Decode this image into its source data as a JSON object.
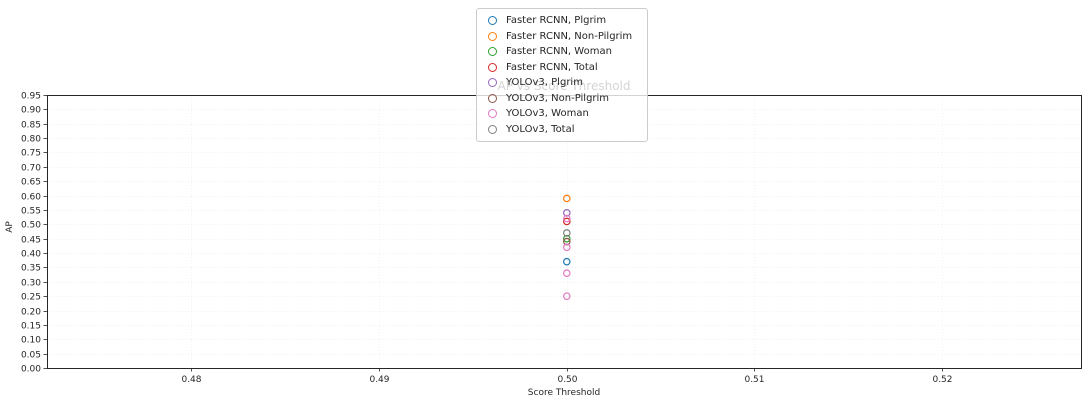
{
  "chart_data": {
    "type": "scatter",
    "title": "AP vs Score Threshold",
    "xlabel": "Score Threshold",
    "ylabel": "AP",
    "xlim": [
      0.4723,
      0.5274
    ],
    "ylim": [
      0.0,
      0.95
    ],
    "x_ticks": [
      0.48,
      0.49,
      0.5,
      0.51,
      0.52
    ],
    "y_ticks": [
      0.0,
      0.05,
      0.1,
      0.15,
      0.2,
      0.25,
      0.3,
      0.35,
      0.4,
      0.45,
      0.5,
      0.55,
      0.6,
      0.65,
      0.7,
      0.75,
      0.8,
      0.85,
      0.9,
      0.95
    ],
    "grid": true,
    "legend_position": "top-center",
    "marker_style": "open-circle",
    "series": [
      {
        "name": "Faster RCNN, Plgrim",
        "color": "#1f77b4",
        "points": [
          {
            "x": 0.5,
            "y": 0.37
          }
        ]
      },
      {
        "name": "Faster RCNN, Non-Pilgrim",
        "color": "#ff7f0e",
        "points": [
          {
            "x": 0.5,
            "y": 0.59
          }
        ]
      },
      {
        "name": "Faster RCNN, Woman",
        "color": "#2ca02c",
        "points": [
          {
            "x": 0.5,
            "y": 0.45
          }
        ]
      },
      {
        "name": "Faster RCNN, Total",
        "color": "#d62728",
        "points": [
          {
            "x": 0.5,
            "y": 0.51
          }
        ]
      },
      {
        "name": "YOLOv3, Plgrim",
        "color": "#9467bd",
        "points": [
          {
            "x": 0.5,
            "y": 0.54
          }
        ]
      },
      {
        "name": "YOLOv3, Non-Pilgrim",
        "color": "#8c564b",
        "points": [
          {
            "x": 0.5,
            "y": 0.44
          }
        ]
      },
      {
        "name": "YOLOv3, Woman",
        "color": "#e377c2",
        "points": [
          {
            "x": 0.5,
            "y": 0.52
          },
          {
            "x": 0.5,
            "y": 0.42
          },
          {
            "x": 0.5,
            "y": 0.33
          },
          {
            "x": 0.5,
            "y": 0.25
          }
        ]
      },
      {
        "name": "YOLOv3, Total",
        "color": "#7f7f7f",
        "points": [
          {
            "x": 0.5,
            "y": 0.47
          }
        ]
      }
    ]
  }
}
